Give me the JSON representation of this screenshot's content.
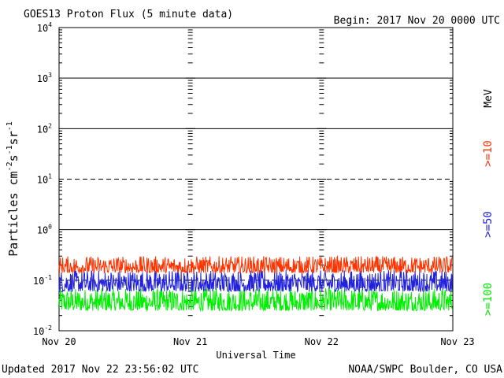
{
  "chart_data": {
    "type": "line",
    "title": "GOES13 Proton Flux (5 minute data)",
    "begin_label": "Begin: 2017 Nov 20 0000 UTC",
    "xlabel": "Universal Time",
    "ylabel": "Particles cm⁻²s⁻¹sr⁻¹",
    "ylabel_parts": [
      "Particles cm",
      "-2",
      "s",
      "-1",
      "sr",
      "-1"
    ],
    "yscale": "log",
    "ylim": [
      0.01,
      10000
    ],
    "y_ticks": [
      {
        "base": "10",
        "exp": "4"
      },
      {
        "base": "10",
        "exp": "3"
      },
      {
        "base": "10",
        "exp": "2"
      },
      {
        "base": "10",
        "exp": "1"
      },
      {
        "base": "10",
        "exp": "0"
      },
      {
        "base": "10",
        "exp": "-1"
      },
      {
        "base": "10",
        "exp": "-2"
      }
    ],
    "x_ticks": [
      "Nov 20",
      "Nov 21",
      "Nov 22",
      "Nov 23"
    ],
    "x_range": [
      "2017-11-20 00:00",
      "2017-11-23 00:00"
    ],
    "data_end": "2017-11-22 23:55",
    "unit_label": "MeV",
    "series": [
      {
        "name": ">=10",
        "color": "#ff3300",
        "typical_min": 0.14,
        "typical_max": 0.3
      },
      {
        "name": ">=50",
        "color": "#2222dd",
        "typical_min": 0.06,
        "typical_max": 0.16
      },
      {
        "name": ">=100",
        "color": "#00ee00",
        "typical_min": 0.025,
        "typical_max": 0.07
      }
    ],
    "grid": true
  },
  "footer": {
    "updated": "Updated 2017 Nov 22 23:56:02 UTC",
    "source": "NOAA/SWPC Boulder, CO USA"
  }
}
